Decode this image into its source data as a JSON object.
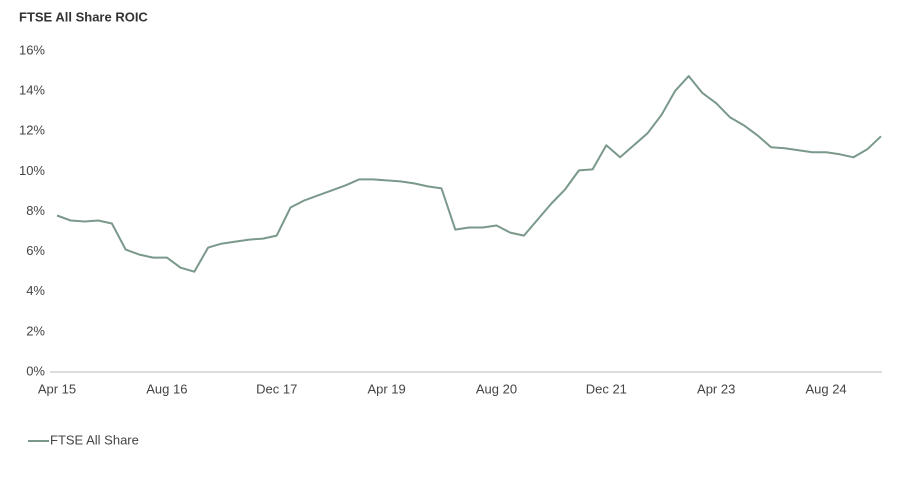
{
  "chart_data": {
    "type": "line",
    "title": "FTSE All Share ROIC",
    "categories": [
      "Apr 15",
      null,
      null,
      null,
      null,
      null,
      null,
      null,
      "Aug 16",
      null,
      null,
      null,
      null,
      null,
      null,
      null,
      "Dec 17",
      null,
      null,
      null,
      null,
      null,
      null,
      null,
      "Apr 19",
      null,
      null,
      null,
      null,
      null,
      null,
      null,
      "Aug 20",
      null,
      null,
      null,
      null,
      null,
      null,
      null,
      "Dec 21",
      null,
      null,
      null,
      null,
      null,
      null,
      null,
      "Apr 23",
      null,
      null,
      null,
      null,
      null,
      null,
      null,
      "Aug 24",
      null,
      null,
      null,
      null
    ],
    "series": [
      {
        "name": "FTSE All Share",
        "color": "#7a998a",
        "values": [
          7.8,
          7.55,
          7.5,
          7.55,
          7.4,
          6.1,
          5.85,
          5.7,
          5.7,
          5.2,
          5.0,
          6.2,
          6.4,
          6.5,
          6.6,
          6.65,
          6.8,
          8.2,
          8.55,
          8.8,
          9.05,
          9.3,
          9.6,
          9.6,
          9.55,
          9.5,
          9.4,
          9.25,
          9.15,
          7.1,
          7.2,
          7.2,
          7.3,
          6.95,
          6.8,
          7.6,
          8.4,
          9.1,
          10.05,
          10.1,
          11.3,
          10.7,
          11.3,
          11.9,
          12.8,
          14.0,
          14.75,
          13.9,
          13.4,
          12.7,
          12.3,
          11.8,
          11.2,
          11.15,
          11.05,
          10.95,
          10.95,
          10.85,
          10.7,
          11.1,
          11.75
        ]
      }
    ],
    "ylim": [
      0,
      16
    ],
    "yticks": [
      {
        "value": 0,
        "label": "0%"
      },
      {
        "value": 2,
        "label": "2%"
      },
      {
        "value": 4,
        "label": "4%"
      },
      {
        "value": 6,
        "label": "6%"
      },
      {
        "value": 8,
        "label": "8%"
      },
      {
        "value": 10,
        "label": "10%"
      },
      {
        "value": 12,
        "label": "12%"
      },
      {
        "value": 14,
        "label": "14%"
      },
      {
        "value": 16,
        "label": "16%"
      }
    ],
    "grid": false
  }
}
